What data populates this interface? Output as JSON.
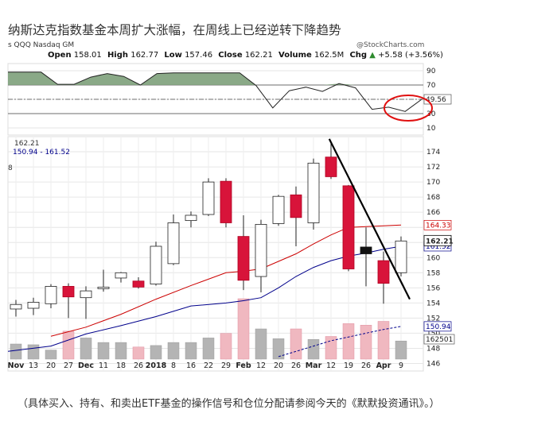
{
  "title": "纳斯达克指数基金本周扩大涨幅，在周线上已经逆转下降趋势",
  "header": {
    "symbol": "s QQQ Nasdaq GM",
    "watermark": "@StockCharts.com",
    "open_label": "Open",
    "open": "158.01",
    "high_label": "High",
    "high": "162.77",
    "low_label": "Low",
    "low": "157.46",
    "close_label": "Close",
    "close": "162.21",
    "volume_label": "Volume",
    "volume": "162.5M",
    "chg_label": "Chg",
    "chg": "+5.58 (+3.56%)",
    "chg_arrow": "▲"
  },
  "price_panel": {
    "close_label": "162.21",
    "ma_label": "150.94 - 161.52",
    "left_edge_label": "8"
  },
  "caption": "（具体买入、持有、和卖出ETF基金的操作信号和仓位分配请参阅今天的《默默投资通讯》。）",
  "chart_data": [
    {
      "type": "line",
      "panel": "RSI",
      "y_ticks": [
        10,
        30,
        50,
        70,
        90
      ],
      "ylim": [
        0,
        100
      ],
      "reference_lines": [
        70,
        50,
        30
      ],
      "value_label": "49.56",
      "series": [
        {
          "values": [
            88,
            88,
            88,
            71,
            71,
            81,
            86,
            82,
            70,
            86,
            87,
            87,
            87,
            87,
            87,
            69,
            38,
            62,
            67,
            61,
            72,
            66,
            36,
            39,
            33,
            50
          ]
        }
      ],
      "highlight": "red ellipse around latest RSI value"
    },
    {
      "type": "candlestick",
      "panel": "price",
      "x_ticks": [
        "Nov",
        "13",
        "20",
        "27",
        "Dec",
        "11",
        "18",
        "26",
        "2018",
        "8",
        "16",
        "22",
        "29",
        "Feb",
        "12",
        "20",
        "26",
        "Mar",
        "12",
        "19",
        "26",
        "Apr",
        "9"
      ],
      "y_ticks": [
        146,
        148,
        150,
        152,
        154,
        156,
        158,
        160,
        162,
        164,
        166,
        168,
        170,
        172,
        174
      ],
      "ylim": [
        145,
        176
      ],
      "candles": [
        {
          "o": 153.2,
          "h": 154.4,
          "l": 152.2,
          "c": 153.8
        },
        {
          "o": 153.3,
          "h": 154.7,
          "l": 152.4,
          "c": 154.1
        },
        {
          "o": 153.9,
          "h": 156.5,
          "l": 153.3,
          "c": 156.2
        },
        {
          "o": 156.2,
          "h": 156.6,
          "l": 152.0,
          "c": 154.8
        },
        {
          "o": 154.7,
          "h": 156.2,
          "l": 151.9,
          "c": 155.6
        },
        {
          "o": 156.0,
          "h": 158.4,
          "l": 155.5,
          "c": 156.1
        },
        {
          "o": 157.3,
          "h": 158.1,
          "l": 156.7,
          "c": 158.0
        },
        {
          "o": 156.9,
          "h": 157.4,
          "l": 155.9,
          "c": 156.1
        },
        {
          "o": 156.5,
          "h": 162.1,
          "l": 156.3,
          "c": 161.5
        },
        {
          "o": 159.2,
          "h": 165.7,
          "l": 159.0,
          "c": 164.6
        },
        {
          "o": 164.9,
          "h": 166.1,
          "l": 164.0,
          "c": 165.6
        },
        {
          "o": 165.7,
          "h": 170.5,
          "l": 165.5,
          "c": 170.0
        },
        {
          "o": 170.1,
          "h": 170.5,
          "l": 164.0,
          "c": 164.6
        },
        {
          "o": 162.8,
          "h": 165.6,
          "l": 155.7,
          "c": 157.0
        },
        {
          "o": 157.5,
          "h": 165.0,
          "l": 155.4,
          "c": 164.4
        },
        {
          "o": 164.5,
          "h": 168.3,
          "l": 164.2,
          "c": 168.1
        },
        {
          "o": 168.3,
          "h": 169.4,
          "l": 161.5,
          "c": 165.3
        },
        {
          "o": 164.6,
          "h": 173.1,
          "l": 163.7,
          "c": 172.5
        },
        {
          "o": 173.3,
          "h": 175.3,
          "l": 170.4,
          "c": 170.7
        },
        {
          "o": 169.5,
          "h": 169.6,
          "l": 158.2,
          "c": 158.5
        },
        {
          "o": 161.4,
          "h": 164.0,
          "l": 156.2,
          "c": 160.5
        },
        {
          "o": 159.6,
          "h": 160.8,
          "l": 153.9,
          "c": 156.6
        },
        {
          "o": 158.0,
          "h": 162.8,
          "l": 157.5,
          "c": 162.2
        }
      ],
      "series": [
        {
          "values": [
            null,
            null,
            null,
            null,
            null,
            null,
            null,
            null,
            null,
            null,
            null,
            null,
            null,
            158.2,
            158.5,
            159.5,
            160.5,
            161.8,
            163.0,
            164.0,
            164.1,
            164.2,
            164.3
          ],
          "color": "#cc0000",
          "label": "164.33"
        },
        {
          "values": [
            null,
            null,
            null,
            null,
            null,
            null,
            null,
            null,
            null,
            null,
            null,
            null,
            null,
            154.3,
            154.7,
            156.0,
            157.5,
            158.7,
            159.6,
            160.2,
            160.6,
            161.1,
            161.5
          ],
          "color": "#00008b",
          "label": "161.52"
        },
        {
          "values": [
            null,
            null,
            null,
            null,
            null,
            null,
            null,
            null,
            null,
            null,
            null,
            null,
            null,
            null,
            null,
            146.9,
            147.6,
            148.3,
            149.0,
            149.5,
            150.0,
            150.5,
            150.9
          ],
          "color": "#00008b",
          "dashed": true,
          "label": "150.94"
        }
      ],
      "trendline": {
        "from": [
          17.9,
          175.7
        ],
        "to": [
          22.5,
          154.5
        ],
        "color": "#000000"
      },
      "volume": {
        "values": [
          20,
          19,
          12,
          37,
          28,
          22,
          22,
          16,
          18,
          22,
          22,
          28,
          34,
          80,
          40,
          27,
          40,
          26,
          30,
          47,
          45,
          50,
          24
        ],
        "label": "162501"
      }
    }
  ]
}
